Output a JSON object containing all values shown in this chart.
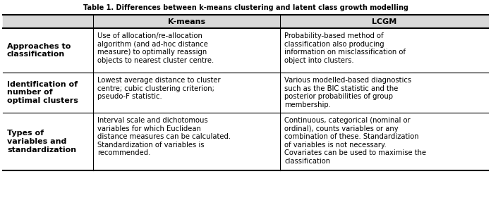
{
  "title": "Table 1. Differences between k-means clustering and latent class growth modelling",
  "col_headers": [
    "K-means",
    "LCGM"
  ],
  "row_headers": [
    "Approaches to\nclassification",
    "Identification of\nnumber of\noptimal clusters",
    "Types of\nvariables and\nstandardization"
  ],
  "cells": [
    [
      "Use of allocation/re-allocation\nalgorithm (and ad-hoc distance\nmeasure) to optimally reassign\nobjects to nearest cluster centre.",
      "Probability-based method of\nclassification also producing\ninformation on misclassification of\nobject into clusters."
    ],
    [
      "Lowest average distance to cluster\ncentre; cubic clustering criterion;\npseudo-F statistic.",
      "Various modelled-based diagnostics\nsuch as the BIC statistic and the\nposterior probabilities of group\nmembership."
    ],
    [
      "Interval scale and dichotomous\nvariables for which Euclidean\ndistance measures can be calculated.\nStandardization of variables is\nrecommended.",
      "Continuous, categorical (nominal or\nordinal), counts variables or any\ncombination of these. Standardization\nof variables is not necessary.\nCovariates can be used to maximise the\nclassification"
    ]
  ],
  "background_color": "#ffffff",
  "header_bg": "#d8d8d8",
  "line_color": "#000000",
  "text_color": "#000000",
  "title_fontsize": 7.0,
  "header_fontsize": 8.0,
  "cell_fontsize": 7.2,
  "row_header_fontsize": 8.0,
  "figwidth": 6.96,
  "figheight": 3.01,
  "dpi": 100
}
